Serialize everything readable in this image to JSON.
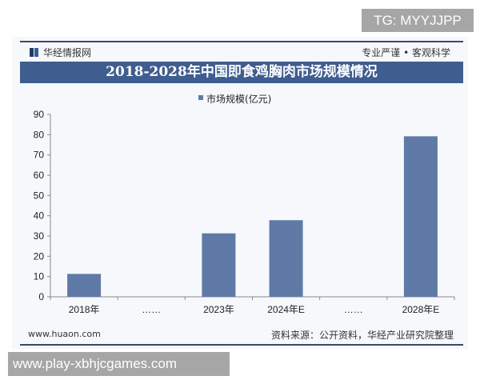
{
  "header": {
    "brand": "华经情报网",
    "slogan": "专业严谨 • 客观科学"
  },
  "footer": {
    "website": "www.huaon.com",
    "source": "资料来源：公开资料，华经产业研究院整理"
  },
  "watermarks": {
    "top": "TG: MYYJJPP",
    "bottom": "www.play-xbhjcgames.com"
  },
  "chart_data": {
    "type": "bar",
    "title": "2018-2028年中国即食鸡胸肉市场规模情况",
    "legend": {
      "entries": [
        "市场规模(亿元)"
      ],
      "placement": "top"
    },
    "categories": [
      "2018年",
      "……",
      "2023年",
      "2024年E",
      "……",
      "2028年E"
    ],
    "series": [
      {
        "name": "市场规模(亿元)",
        "values": [
          11.3,
          null,
          31.3,
          37.8,
          null,
          79.2
        ],
        "color": "#5f7aa6"
      }
    ],
    "yticks": [
      "0",
      "10",
      "20",
      "30",
      "40",
      "50",
      "60",
      "70",
      "80",
      "90"
    ],
    "ylim": [
      0,
      90
    ],
    "grid": false
  }
}
